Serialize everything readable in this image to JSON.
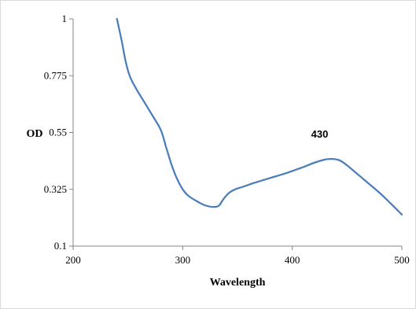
{
  "chart_data": {
    "type": "line",
    "title": "",
    "xlabel": "Wavelength",
    "ylabel": "OD",
    "xlim": [
      200,
      500
    ],
    "ylim": [
      0.1,
      1
    ],
    "xticks": [
      200,
      300,
      400,
      500
    ],
    "yticks": [
      0.1,
      0.325,
      0.55,
      0.775,
      1
    ],
    "ytick_labels": [
      "0.1",
      "0.325",
      "0.55",
      "0.775",
      "1"
    ],
    "xtick_labels": [
      "200",
      "300",
      "400",
      "500"
    ],
    "grid": false,
    "legend": "none",
    "series": [
      {
        "color": "#4a7ebb",
        "x": [
          240,
          244,
          248,
          252,
          258,
          265,
          272,
          280,
          285,
          290,
          295,
          300,
          305,
          312,
          320,
          328,
          333,
          337,
          342,
          348,
          355,
          365,
          380,
          395,
          410,
          420,
          430,
          437,
          443,
          450,
          465,
          480,
          490,
          500
        ],
        "y": [
          1.0,
          0.92,
          0.83,
          0.77,
          0.72,
          0.67,
          0.62,
          0.56,
          0.49,
          0.42,
          0.365,
          0.325,
          0.3,
          0.28,
          0.262,
          0.255,
          0.26,
          0.285,
          0.31,
          0.325,
          0.335,
          0.35,
          0.37,
          0.39,
          0.413,
          0.43,
          0.443,
          0.445,
          0.44,
          0.42,
          0.365,
          0.31,
          0.268,
          0.225
        ]
      }
    ],
    "annotations": [
      {
        "text": "430",
        "x": 430,
        "y": 0.53
      }
    ]
  }
}
